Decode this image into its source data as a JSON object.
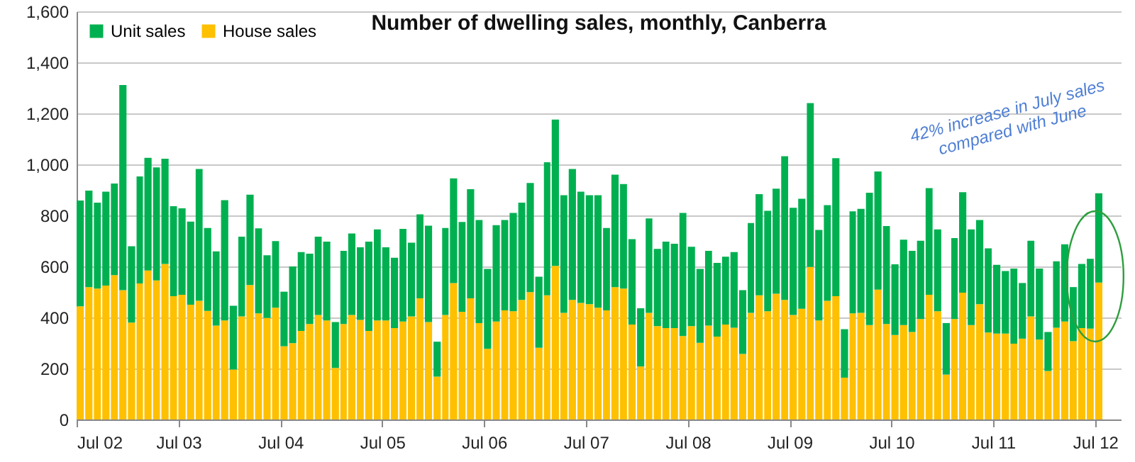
{
  "chart_data": {
    "type": "bar",
    "title": "Number of dwelling sales, monthly, Canberra",
    "stacked": true,
    "x": [
      "2002-07",
      "2002-08",
      "2002-09",
      "2002-10",
      "2002-11",
      "2002-12",
      "2003-01",
      "2003-02",
      "2003-03",
      "2003-04",
      "2003-05",
      "2003-06",
      "2003-07",
      "2003-08",
      "2003-09",
      "2003-10",
      "2003-11",
      "2003-12",
      "2004-01",
      "2004-02",
      "2004-03",
      "2004-04",
      "2004-05",
      "2004-06",
      "2004-07",
      "2004-08",
      "2004-09",
      "2004-10",
      "2004-11",
      "2004-12",
      "2005-01",
      "2005-02",
      "2005-03",
      "2005-04",
      "2005-05",
      "2005-06",
      "2005-07",
      "2005-08",
      "2005-09",
      "2005-10",
      "2005-11",
      "2005-12",
      "2006-01",
      "2006-02",
      "2006-03",
      "2006-04",
      "2006-05",
      "2006-06",
      "2006-07",
      "2006-08",
      "2006-09",
      "2006-10",
      "2006-11",
      "2006-12",
      "2007-01",
      "2007-02",
      "2007-03",
      "2007-04",
      "2007-05",
      "2007-06",
      "2007-07",
      "2007-08",
      "2007-09",
      "2007-10",
      "2007-11",
      "2007-12",
      "2008-01",
      "2008-02",
      "2008-03",
      "2008-04",
      "2008-05",
      "2008-06",
      "2008-07",
      "2008-08",
      "2008-09",
      "2008-10",
      "2008-11",
      "2008-12",
      "2009-01",
      "2009-02",
      "2009-03",
      "2009-04",
      "2009-05",
      "2009-06",
      "2009-07",
      "2009-08",
      "2009-09",
      "2009-10",
      "2009-11",
      "2009-12",
      "2010-01",
      "2010-02",
      "2010-03",
      "2010-04",
      "2010-05",
      "2010-06",
      "2010-07",
      "2010-08",
      "2010-09",
      "2010-10",
      "2010-11",
      "2010-12",
      "2011-01",
      "2011-02",
      "2011-03",
      "2011-04",
      "2011-05",
      "2011-06",
      "2011-07",
      "2011-08",
      "2011-09",
      "2011-10",
      "2011-11",
      "2011-12",
      "2012-01",
      "2012-02",
      "2012-03",
      "2012-04",
      "2012-05",
      "2012-06",
      "2012-07"
    ],
    "series": [
      {
        "name": "House sales",
        "color": "#ffc000",
        "values": [
          444,
          519,
          513,
          525,
          566,
          507,
          380,
          533,
          584,
          545,
          610,
          483,
          489,
          450,
          465,
          426,
          368,
          388,
          196,
          404,
          527,
          416,
          398,
          438,
          287,
          299,
          347,
          374,
          410,
          388,
          202,
          374,
          410,
          390,
          347,
          388,
          388,
          358,
          384,
          404,
          475,
          382,
          168,
          410,
          535,
          422,
          475,
          378,
          277,
          384,
          428,
          424,
          469,
          499,
          281,
          487,
          602,
          418,
          469,
          457,
          452,
          438,
          428,
          519,
          513,
          372,
          208,
          418,
          366,
          358,
          358,
          327,
          366,
          301,
          368,
          325,
          372,
          360,
          257,
          418,
          487,
          424,
          493,
          469,
          410,
          434,
          598,
          388,
          465,
          483,
          164,
          416,
          418,
          370,
          509,
          374,
          331,
          370,
          343,
          394,
          489,
          424,
          176,
          394,
          497,
          370,
          452,
          341,
          337,
          337,
          297,
          317,
          404,
          313,
          190,
          360,
          384,
          307,
          358,
          356,
          537
        ]
      },
      {
        "name": "Unit sales",
        "color": "#00b050",
        "values": [
          414,
          378,
          337,
          368,
          359,
          804,
          299,
          420,
          442,
          443,
          412,
          353,
          339,
          326,
          517,
          325,
          291,
          472,
          250,
          313,
          354,
          333,
          246,
          261,
          214,
          301,
          309,
          276,
          307,
          309,
          180,
          287,
          319,
          285,
          350,
          357,
          287,
          276,
          363,
          289,
          329,
          378,
          137,
          341,
          410,
          352,
          428,
          404,
          313,
          378,
          354,
          386,
          381,
          428,
          279,
          521,
          574,
          461,
          513,
          436,
          427,
          441,
          323,
          441,
          410,
          335,
          228,
          370,
          303,
          339,
          331,
          483,
          311,
          289,
          293,
          289,
          266,
          296,
          250,
          352,
          396,
          394,
          412,
          563,
          420,
          431,
          642,
          355,
          375,
          541,
          190,
          400,
          408,
          519,
          463,
          384,
          277,
          335,
          318,
          307,
          418,
          321,
          202,
          317,
          394,
          375,
          330,
          330,
          269,
          245,
          295,
          218,
          297,
          279,
          153,
          260,
          303,
          212,
          252,
          274,
          350
        ]
      }
    ],
    "xlim": [
      "2002-07",
      "2012-10"
    ],
    "xticks": [
      {
        "value": "2002-07",
        "label": "Jul 02"
      },
      {
        "value": "2003-07",
        "label": "Jul 03"
      },
      {
        "value": "2004-07",
        "label": "Jul 04"
      },
      {
        "value": "2005-07",
        "label": "Jul 05"
      },
      {
        "value": "2006-07",
        "label": "Jul 06"
      },
      {
        "value": "2007-07",
        "label": "Jul 07"
      },
      {
        "value": "2008-07",
        "label": "Jul 08"
      },
      {
        "value": "2009-07",
        "label": "Jul 09"
      },
      {
        "value": "2010-07",
        "label": "Jul 10"
      },
      {
        "value": "2011-07",
        "label": "Jul 11"
      },
      {
        "value": "2012-07",
        "label": "Jul 12"
      }
    ],
    "ylim": [
      0,
      1600
    ],
    "yticks": [
      0,
      200,
      400,
      600,
      800,
      {
        "value": 1000,
        "label": "1,000"
      },
      {
        "value": 1200,
        "label": "1,200"
      },
      {
        "value": 1400,
        "label": "1,400"
      },
      {
        "value": 1600,
        "label": "1,600"
      }
    ],
    "grid": "y",
    "legend": "top left",
    "annotations": [
      "42% increase in July sales\ncompared with June"
    ]
  }
}
